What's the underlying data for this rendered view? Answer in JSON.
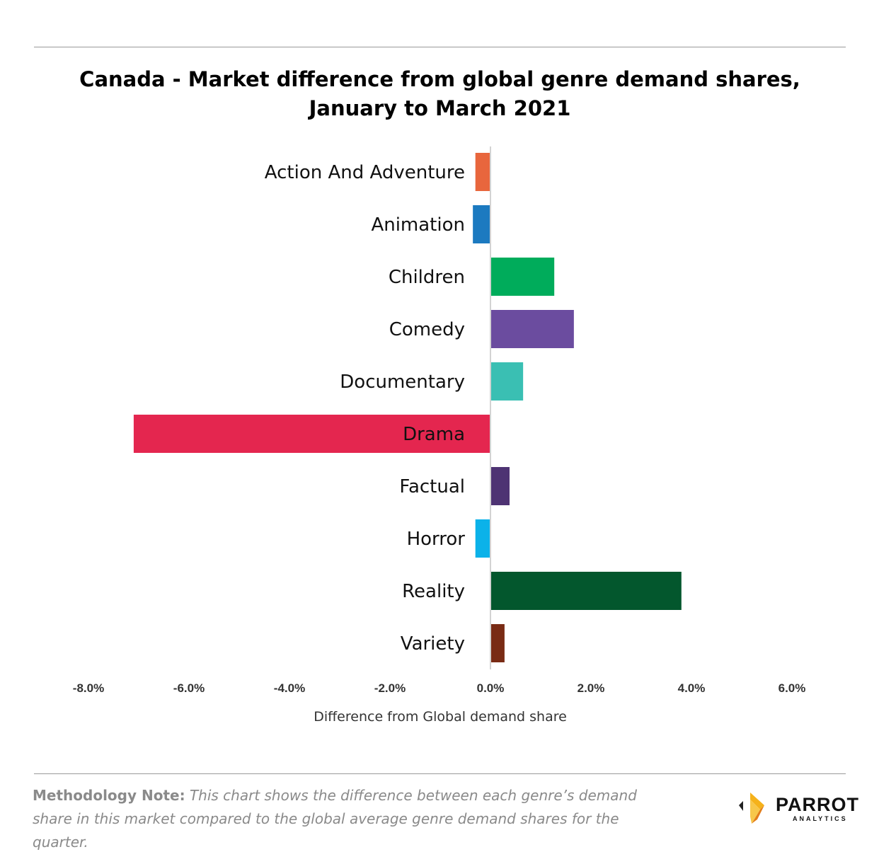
{
  "header": {
    "title": "Canada - Market difference from global genre demand shares, January to March 2021"
  },
  "chart_data": {
    "type": "bar",
    "orientation": "horizontal",
    "title": "Canada - Market difference from global genre demand shares, January to March 2021",
    "xlabel": "Difference from Global demand share",
    "ylabel": "",
    "categories": [
      "Action And Adventure",
      "Animation",
      "Children",
      "Comedy",
      "Documentary",
      "Drama",
      "Factual",
      "Horror",
      "Reality",
      "Variety"
    ],
    "values": [
      -0.3,
      -0.35,
      1.27,
      1.66,
      0.65,
      -7.1,
      0.38,
      -0.3,
      3.8,
      0.28
    ],
    "colors": [
      "#e8663d",
      "#1c7ac0",
      "#00ac5b",
      "#6b4c9f",
      "#3abfb3",
      "#e4264f",
      "#4e3373",
      "#0bb2e9",
      "#03572d",
      "#792b14"
    ],
    "xlim": [
      -8,
      6
    ],
    "x_ticks": [
      -8,
      -6,
      -4,
      -2,
      0,
      2,
      4,
      6
    ],
    "x_tick_labels": [
      "-8.0%",
      "-6.0%",
      "-4.0%",
      "-2.0%",
      "0.0%",
      "2.0%",
      "4.0%",
      "6.0%"
    ],
    "grid": false,
    "legend": "none"
  },
  "footnote": {
    "label": "Methodology Note:",
    "text": "This chart shows the difference between each genre’s demand share in this market compared to the global average genre demand shares for the quarter."
  },
  "brand": {
    "name": "PARROT",
    "sub": "ANALYTICS",
    "logo_icon": "parrot-analytics-logo-icon",
    "logo_colors": [
      "#f5b21b",
      "#e27d1a",
      "#222222"
    ]
  }
}
